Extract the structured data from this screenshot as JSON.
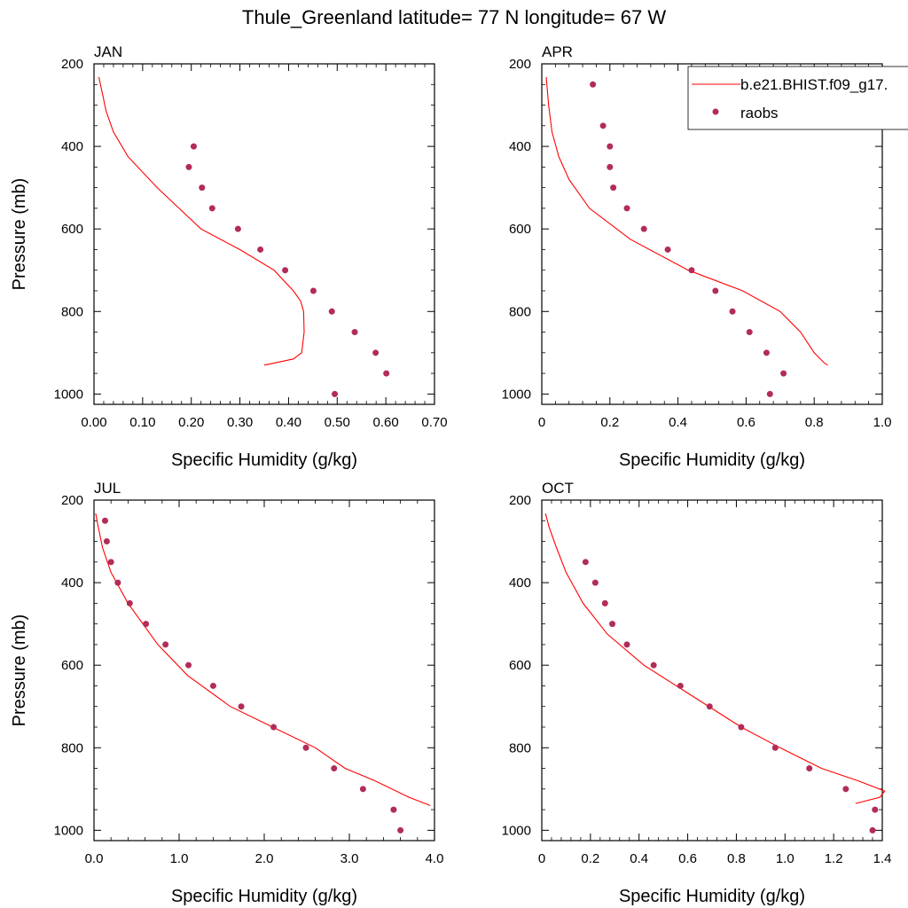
{
  "figure": {
    "title": "Thule_Greenland  latitude= 77 N longitude= 67 W"
  },
  "legend": {
    "model_label": "b.e21.BHIST.f09_g17.",
    "obs_label": "raobs"
  },
  "colors": {
    "model_line": "#ff0000",
    "obs_points": "#b22c58",
    "axis": "#000000"
  },
  "chart_data": [
    {
      "type": "scatter",
      "panel_title": "JAN",
      "xlabel": "Specific Humidity (g/kg)",
      "ylabel": "Pressure (mb)",
      "xlim": [
        0,
        0.7
      ],
      "ylim": [
        200,
        1025
      ],
      "y_inverted": true,
      "xticks": [
        "0.00",
        "0.10",
        "0.20",
        "0.30",
        "0.40",
        "0.50",
        "0.60",
        "0.70"
      ],
      "yticks": [
        "200",
        "400",
        "600",
        "800",
        "1000"
      ],
      "series": [
        {
          "name": "b.e21.BHIST.f09_g17.",
          "kind": "line",
          "x": [
            0.35,
            0.41,
            0.427,
            0.432,
            0.431,
            0.425,
            0.41,
            0.37,
            0.3,
            0.22,
            0.13,
            0.07,
            0.04,
            0.025,
            0.016,
            0.01
          ],
          "y": [
            930,
            915,
            900,
            850,
            800,
            775,
            750,
            700,
            650,
            600,
            500,
            425,
            365,
            315,
            265,
            232
          ]
        },
        {
          "name": "raobs",
          "kind": "points",
          "x": [
            0.205,
            0.195,
            0.222,
            0.243,
            0.296,
            0.342,
            0.393,
            0.451,
            0.489,
            0.536,
            0.579,
            0.601,
            0.495
          ],
          "y": [
            400,
            450,
            500,
            550,
            600,
            650,
            700,
            750,
            800,
            850,
            900,
            950,
            1000
          ]
        }
      ]
    },
    {
      "type": "scatter",
      "panel_title": "APR",
      "xlabel": "Specific Humidity (g/kg)",
      "ylabel": "",
      "xlim": [
        0,
        1.0
      ],
      "ylim": [
        200,
        1025
      ],
      "y_inverted": true,
      "xticks": [
        "0",
        "0.2",
        "0.4",
        "0.6",
        "0.8",
        "1.0"
      ],
      "yticks": [
        "200",
        "400",
        "600",
        "800",
        "1000"
      ],
      "series": [
        {
          "name": "b.e21.BHIST.f09_g17.",
          "kind": "line",
          "x": [
            0.84,
            0.83,
            0.8,
            0.76,
            0.7,
            0.59,
            0.43,
            0.26,
            0.14,
            0.08,
            0.05,
            0.03,
            0.02,
            0.013
          ],
          "y": [
            930,
            925,
            900,
            850,
            800,
            750,
            700,
            625,
            550,
            480,
            425,
            365,
            300,
            232
          ]
        },
        {
          "name": "raobs",
          "kind": "points",
          "x": [
            0.15,
            0.18,
            0.2,
            0.2,
            0.21,
            0.25,
            0.3,
            0.37,
            0.44,
            0.51,
            0.56,
            0.61,
            0.66,
            0.71,
            0.67
          ],
          "y": [
            250,
            350,
            400,
            450,
            500,
            550,
            600,
            650,
            700,
            750,
            800,
            850,
            900,
            950,
            1000
          ]
        }
      ]
    },
    {
      "type": "scatter",
      "panel_title": "JUL",
      "xlabel": "Specific Humidity (g/kg)",
      "ylabel": "Pressure (mb)",
      "xlim": [
        0,
        4.0
      ],
      "ylim": [
        200,
        1025
      ],
      "y_inverted": true,
      "xticks": [
        "0.0",
        "1.0",
        "2.0",
        "3.0",
        "4.0"
      ],
      "yticks": [
        "200",
        "400",
        "600",
        "800",
        "1000"
      ],
      "series": [
        {
          "name": "b.e21.BHIST.f09_g17.",
          "kind": "line",
          "x": [
            3.95,
            3.7,
            3.3,
            2.95,
            2.6,
            2.1,
            1.6,
            1.1,
            0.75,
            0.4,
            0.2,
            0.1,
            0.05,
            0.02
          ],
          "y": [
            940,
            920,
            880,
            850,
            800,
            750,
            700,
            625,
            550,
            450,
            375,
            315,
            265,
            232
          ]
        },
        {
          "name": "raobs",
          "kind": "points",
          "x": [
            0.13,
            0.15,
            0.2,
            0.28,
            0.42,
            0.61,
            0.84,
            1.11,
            1.4,
            1.73,
            2.11,
            2.49,
            2.82,
            3.16,
            3.52,
            3.6
          ],
          "y": [
            250,
            300,
            350,
            400,
            450,
            500,
            550,
            600,
            650,
            700,
            750,
            800,
            850,
            900,
            950,
            1000
          ]
        }
      ]
    },
    {
      "type": "scatter",
      "panel_title": "OCT",
      "xlabel": "Specific Humidity (g/kg)",
      "ylabel": "",
      "xlim": [
        0,
        1.4
      ],
      "ylim": [
        200,
        1025
      ],
      "y_inverted": true,
      "xticks": [
        "0",
        "0.2",
        "0.4",
        "0.6",
        "0.8",
        "1.0",
        "1.2",
        "1.4"
      ],
      "yticks": [
        "200",
        "400",
        "600",
        "800",
        "1000"
      ],
      "series": [
        {
          "name": "b.e21.BHIST.f09_g17.",
          "kind": "line",
          "x": [
            1.29,
            1.39,
            1.41,
            1.3,
            1.15,
            0.98,
            0.82,
            0.62,
            0.42,
            0.27,
            0.17,
            0.1,
            0.06,
            0.03,
            0.015
          ],
          "y": [
            935,
            920,
            905,
            880,
            850,
            800,
            750,
            675,
            600,
            525,
            450,
            375,
            315,
            265,
            232
          ]
        },
        {
          "name": "raobs",
          "kind": "points",
          "x": [
            0.18,
            0.22,
            0.26,
            0.29,
            0.35,
            0.46,
            0.57,
            0.69,
            0.82,
            0.96,
            1.1,
            1.25,
            1.37,
            1.36
          ],
          "y": [
            350,
            400,
            450,
            500,
            550,
            600,
            650,
            700,
            750,
            800,
            850,
            900,
            950,
            1000
          ]
        }
      ]
    }
  ]
}
